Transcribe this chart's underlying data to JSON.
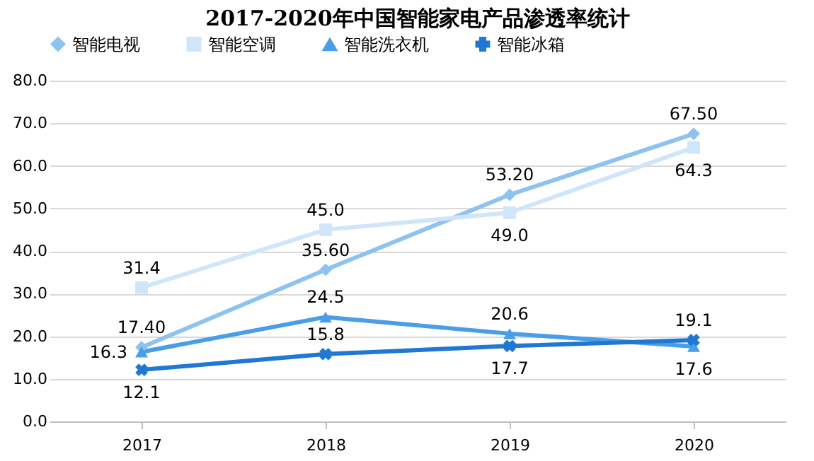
{
  "chart_data": {
    "type": "line",
    "title": "2017-2020年中国智能家电产品渗透率统计",
    "categories": [
      "2017",
      "2018",
      "2019",
      "2020"
    ],
    "series": [
      {
        "name": "智能电视",
        "color": "#8ec3f0",
        "marker": "diamond",
        "values": [
          17.4,
          35.6,
          53.2,
          67.5
        ],
        "value_labels": [
          "17.40",
          "35.60",
          "53.20",
          "67.50"
        ]
      },
      {
        "name": "智能空调",
        "color": "#cfe6fa",
        "marker": "square",
        "values": [
          31.4,
          45.0,
          49.0,
          64.3
        ],
        "value_labels": [
          "31.4",
          "45.0",
          "49.0",
          "64.3"
        ]
      },
      {
        "name": "智能洗衣机",
        "color": "#4a9ee8",
        "marker": "triangle",
        "values": [
          16.3,
          24.5,
          20.6,
          17.6
        ],
        "value_labels": [
          "16.3",
          "24.5",
          "20.6",
          "17.6"
        ]
      },
      {
        "name": "智能冰箱",
        "color": "#1f78d1",
        "marker": "cross",
        "values": [
          12.1,
          15.8,
          17.7,
          19.1
        ],
        "value_labels": [
          "12.1",
          "15.8",
          "17.7",
          "19.1"
        ]
      }
    ],
    "ylim": [
      0,
      80
    ],
    "yticks": [
      {
        "value": 0,
        "label": "0.0"
      },
      {
        "value": 10,
        "label": "10.0"
      },
      {
        "value": 20,
        "label": "20.0"
      },
      {
        "value": 30,
        "label": "30.0"
      },
      {
        "value": 40,
        "label": "40.0"
      },
      {
        "value": 50,
        "label": "50.0"
      },
      {
        "value": 60,
        "label": "60.0"
      },
      {
        "value": 70,
        "label": "70.0"
      },
      {
        "value": 80,
        "label": "80.0"
      }
    ],
    "grid": "y",
    "legend": "top",
    "line_style": "solid"
  }
}
